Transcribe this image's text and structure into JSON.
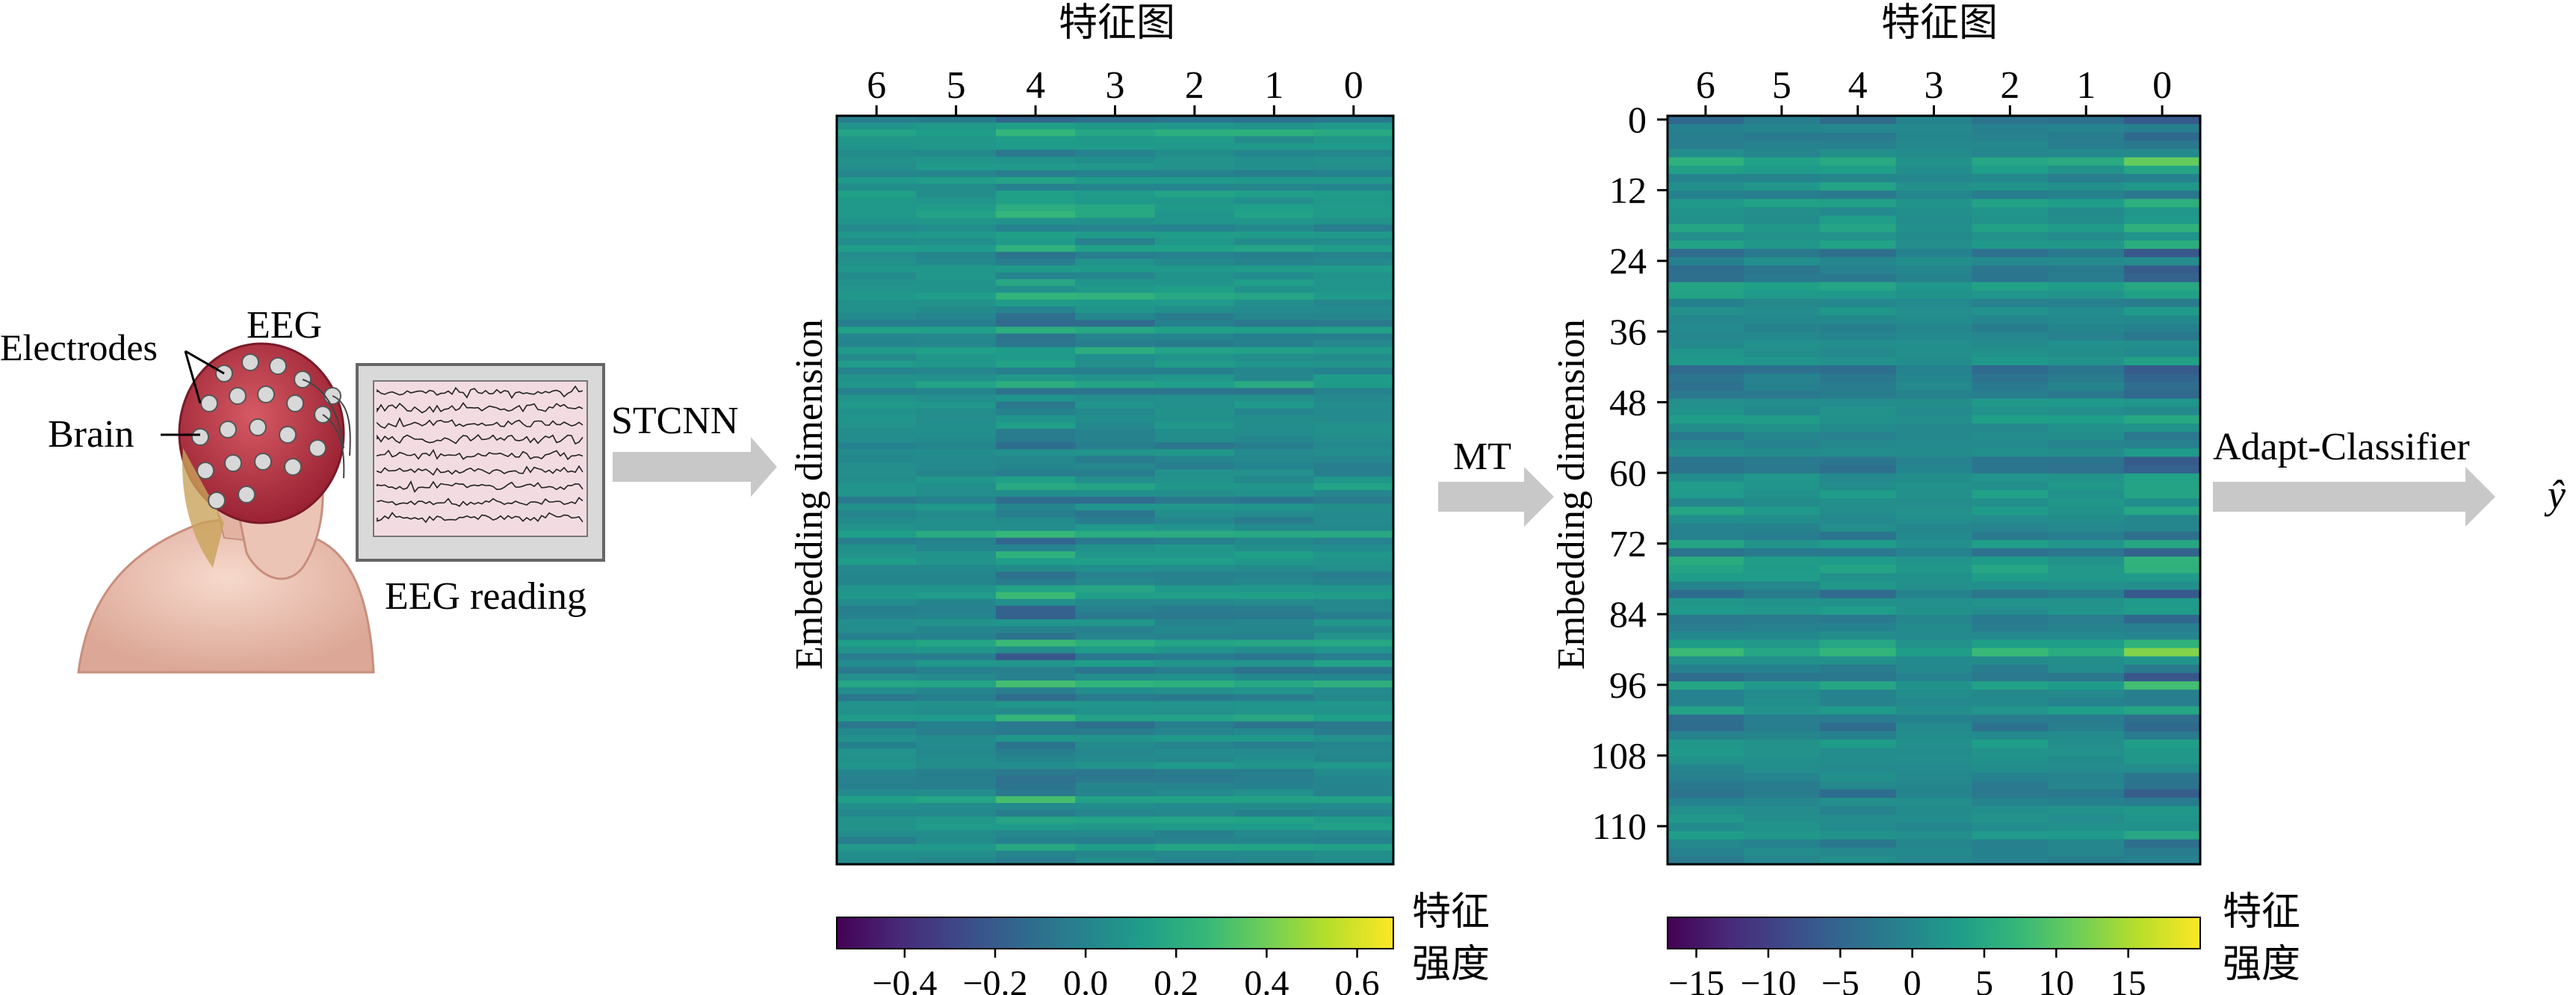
{
  "left_panel": {
    "labels": {
      "eeg": "EEG",
      "electrodes": "Electrodes",
      "brain": "Brain",
      "eeg_reading": "EEG reading"
    }
  },
  "arrows": {
    "stcnn": "STCNN",
    "mt": "MT",
    "adapt_classifier": "Adapt-Classifier",
    "output": "ŷ"
  },
  "heatmap1": {
    "title": "特征图",
    "x_ticks": [
      "6",
      "5",
      "4",
      "3",
      "2",
      "1",
      "0"
    ],
    "y_label": "Embedding dimension",
    "colorbar": {
      "title_line1": "特征",
      "title_line2": "强度",
      "ticks": [
        "−0.4",
        "−0.2",
        "0.0",
        "0.2",
        "0.4",
        "0.6"
      ],
      "range": [
        -0.55,
        0.68
      ]
    }
  },
  "heatmap2": {
    "title": "特征图",
    "x_ticks": [
      "6",
      "5",
      "4",
      "3",
      "2",
      "1",
      "0"
    ],
    "y_ticks": [
      "0",
      "12",
      "24",
      "36",
      "48",
      "60",
      "72",
      "84",
      "96",
      "108",
      "110"
    ],
    "y_label": "Embedding dimension",
    "colorbar": {
      "title_line1": "特征",
      "title_line2": "强度",
      "ticks": [
        "−15",
        "−10",
        "−5",
        "0",
        "5",
        "10",
        "15"
      ],
      "range": [
        -17,
        20
      ]
    }
  },
  "colors": {
    "arrow": "#c8c8c8",
    "viridis": [
      "#440154",
      "#482878",
      "#3e4989",
      "#31688e",
      "#26828e",
      "#1f9e89",
      "#35b779",
      "#6ece58",
      "#b5de2b",
      "#fde725"
    ]
  }
}
